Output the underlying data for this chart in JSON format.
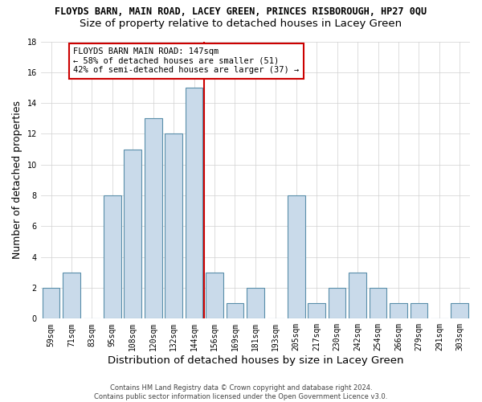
{
  "title": "FLOYDS BARN, MAIN ROAD, LACEY GREEN, PRINCES RISBOROUGH, HP27 0QU",
  "subtitle": "Size of property relative to detached houses in Lacey Green",
  "xlabel": "Distribution of detached houses by size in Lacey Green",
  "ylabel": "Number of detached properties",
  "footer_line1": "Contains HM Land Registry data © Crown copyright and database right 2024.",
  "footer_line2": "Contains public sector information licensed under the Open Government Licence v3.0.",
  "bin_labels": [
    "59sqm",
    "71sqm",
    "83sqm",
    "95sqm",
    "108sqm",
    "120sqm",
    "132sqm",
    "144sqm",
    "156sqm",
    "169sqm",
    "181sqm",
    "193sqm",
    "205sqm",
    "217sqm",
    "230sqm",
    "242sqm",
    "254sqm",
    "266sqm",
    "279sqm",
    "291sqm",
    "303sqm"
  ],
  "bar_heights": [
    2,
    3,
    0,
    8,
    11,
    13,
    12,
    15,
    3,
    1,
    2,
    0,
    8,
    1,
    2,
    3,
    2,
    1,
    1,
    0,
    1
  ],
  "bar_color": "#c9daea",
  "bar_edge_color": "#5a8faa",
  "property_value_idx": 7,
  "vline_color": "#cc0000",
  "annotation_line1": "FLOYDS BARN MAIN ROAD: 147sqm",
  "annotation_line2": "← 58% of detached houses are smaller (51)",
  "annotation_line3": "42% of semi-detached houses are larger (37) →",
  "annotation_box_color": "#cc0000",
  "ylim": [
    0,
    18
  ],
  "yticks": [
    0,
    2,
    4,
    6,
    8,
    10,
    12,
    14,
    16,
    18
  ],
  "background_color": "#ffffff",
  "grid_color": "#d0d0d0",
  "title_fontsize": 8.5,
  "subtitle_fontsize": 9.5,
  "ylabel_fontsize": 9,
  "xlabel_fontsize": 9.5,
  "tick_fontsize": 7,
  "annotation_fontsize": 7.5,
  "footer_fontsize": 6
}
